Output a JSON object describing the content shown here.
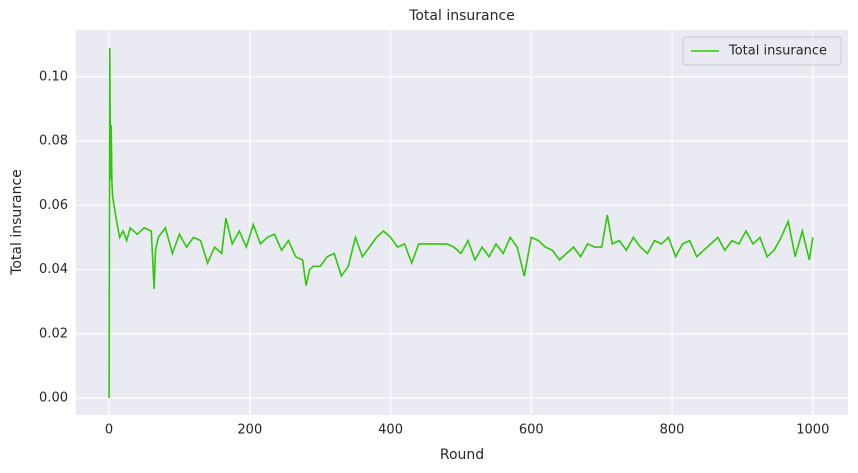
{
  "chart_data": {
    "type": "line",
    "title": "Total insurance",
    "x_label": "Round",
    "y_label": "Total insurance",
    "x": [
      0,
      1,
      2,
      3,
      4,
      5,
      7,
      10,
      15,
      20,
      25,
      30,
      40,
      50,
      60,
      64,
      66,
      70,
      80,
      90,
      100,
      110,
      120,
      130,
      140,
      150,
      160,
      166,
      175,
      185,
      195,
      205,
      215,
      225,
      235,
      245,
      255,
      265,
      275,
      280,
      285,
      290,
      300,
      310,
      320,
      330,
      340,
      350,
      360,
      370,
      380,
      390,
      400,
      410,
      420,
      430,
      440,
      450,
      460,
      470,
      480,
      490,
      500,
      510,
      520,
      530,
      540,
      550,
      560,
      570,
      580,
      590,
      600,
      610,
      620,
      630,
      640,
      650,
      660,
      670,
      680,
      690,
      700,
      708,
      715,
      725,
      735,
      745,
      755,
      765,
      775,
      785,
      795,
      805,
      815,
      825,
      835,
      845,
      855,
      865,
      875,
      885,
      895,
      905,
      915,
      925,
      935,
      945,
      955,
      965,
      975,
      985,
      995,
      1000
    ],
    "series": [
      {
        "name": "Total insurance",
        "color": "#2ec80a",
        "values": [
          0,
          0.109,
          0.068,
          0.085,
          0.067,
          0.063,
          0.06,
          0.056,
          0.05,
          0.052,
          0.049,
          0.053,
          0.051,
          0.053,
          0.052,
          0.034,
          0.046,
          0.05,
          0.053,
          0.045,
          0.051,
          0.047,
          0.05,
          0.049,
          0.042,
          0.047,
          0.045,
          0.056,
          0.048,
          0.052,
          0.047,
          0.054,
          0.048,
          0.05,
          0.051,
          0.046,
          0.049,
          0.044,
          0.043,
          0.035,
          0.04,
          0.041,
          0.041,
          0.044,
          0.045,
          0.038,
          0.041,
          0.05,
          0.044,
          0.047,
          0.05,
          0.052,
          0.05,
          0.047,
          0.048,
          0.042,
          0.048,
          0.048,
          0.048,
          0.048,
          0.048,
          0.047,
          0.045,
          0.049,
          0.043,
          0.047,
          0.044,
          0.048,
          0.045,
          0.05,
          0.047,
          0.038,
          0.05,
          0.049,
          0.047,
          0.046,
          0.043,
          0.045,
          0.047,
          0.044,
          0.048,
          0.047,
          0.047,
          0.057,
          0.048,
          0.049,
          0.046,
          0.05,
          0.047,
          0.045,
          0.049,
          0.048,
          0.05,
          0.044,
          0.048,
          0.049,
          0.044,
          0.046,
          0.048,
          0.05,
          0.046,
          0.049,
          0.048,
          0.052,
          0.048,
          0.05,
          0.044,
          0.046,
          0.05,
          0.055,
          0.044,
          0.052,
          0.043,
          0.05
        ]
      }
    ],
    "xlim": [
      -47,
      1050
    ],
    "ylim": [
      -0.0053,
      0.1146
    ],
    "xticks": [
      0,
      200,
      400,
      600,
      800,
      1000
    ],
    "yticks": [
      {
        "value": 0,
        "label": "0.00"
      },
      {
        "value": 0.02,
        "label": "0.02"
      },
      {
        "value": 0.04,
        "label": "0.04"
      },
      {
        "value": 0.06,
        "label": "0.06"
      },
      {
        "value": 0.08,
        "label": "0.08"
      },
      {
        "value": 0.1,
        "label": "0.10"
      }
    ],
    "grid": true,
    "legend": "upper right"
  }
}
